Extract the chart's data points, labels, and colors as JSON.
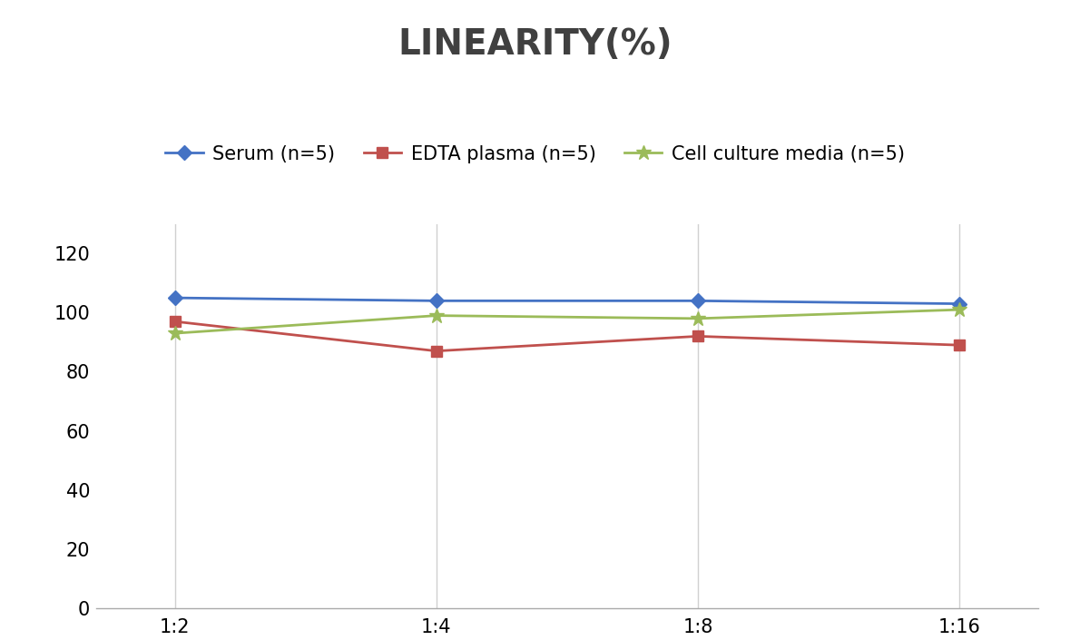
{
  "title": "LINEARITY(%)",
  "x_labels": [
    "1:2",
    "1:4",
    "1:8",
    "1:16"
  ],
  "x_positions": [
    0,
    1,
    2,
    3
  ],
  "series": [
    {
      "label": "Serum (n=5)",
      "values": [
        105,
        104,
        104,
        103
      ],
      "color": "#4472C4",
      "marker": "D",
      "marker_size": 8,
      "linewidth": 2
    },
    {
      "label": "EDTA plasma (n=5)",
      "values": [
        97,
        87,
        92,
        89
      ],
      "color": "#C0504D",
      "marker": "s",
      "marker_size": 8,
      "linewidth": 2
    },
    {
      "label": "Cell culture media (n=5)",
      "values": [
        93,
        99,
        98,
        101
      ],
      "color": "#9BBB59",
      "marker": "*",
      "marker_size": 12,
      "linewidth": 2
    }
  ],
  "ylim": [
    0,
    130
  ],
  "yticks": [
    0,
    20,
    40,
    60,
    80,
    100,
    120
  ],
  "title_fontsize": 28,
  "title_color": "#404040",
  "tick_fontsize": 15,
  "legend_fontsize": 15,
  "background_color": "#ffffff",
  "grid_color": "#d0d0d0"
}
